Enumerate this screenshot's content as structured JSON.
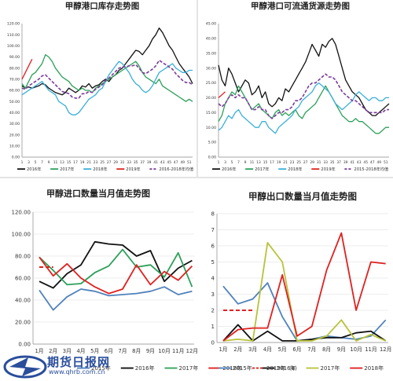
{
  "chart_data": [
    {
      "type": "line",
      "title": "甲醇港口库存走势图",
      "ylim": [
        0,
        120
      ],
      "y_ticks": [
        "0.00",
        "10.00",
        "20.00",
        "30.00",
        "40.00",
        "50.00",
        "60.00",
        "70.00",
        "80.00",
        "90.00",
        "100.00",
        "110.00",
        "120.00"
      ],
      "x_ticks": [
        "1",
        "3",
        "5",
        "7",
        "9",
        "11",
        "13",
        "15",
        "17",
        "19",
        "21",
        "23",
        "25",
        "27",
        "29",
        "31",
        "33",
        "35",
        "37",
        "39",
        "41",
        "43",
        "45",
        "47",
        "49",
        "51"
      ],
      "x": [
        1,
        2,
        3,
        4,
        5,
        6,
        7,
        8,
        9,
        10,
        11,
        12,
        13,
        14,
        15,
        16,
        17,
        18,
        19,
        20,
        21,
        22,
        23,
        24,
        25,
        26,
        27,
        28,
        29,
        30,
        31,
        32,
        33,
        34,
        35,
        36,
        37,
        38,
        39,
        40,
        41,
        42,
        43,
        44,
        45,
        46,
        47,
        48,
        49,
        50,
        51,
        52
      ],
      "series": [
        {
          "name": "2016年",
          "color": "#111111",
          "dash": false,
          "values": [
            64,
            62,
            63,
            62,
            63,
            64,
            66,
            65,
            62,
            60,
            58,
            57,
            56,
            58,
            62,
            60,
            58,
            60,
            64,
            63,
            66,
            62,
            64,
            65,
            68,
            70,
            68,
            72,
            74,
            78,
            80,
            84,
            88,
            92,
            96,
            95,
            92,
            96,
            100,
            106,
            110,
            116,
            112,
            106,
            100,
            96,
            90,
            84,
            80,
            76,
            72,
            66
          ]
        },
        {
          "name": "2017年",
          "color": "#2ca05a",
          "dash": false,
          "values": [
            66,
            62,
            68,
            74,
            76,
            80,
            84,
            92,
            90,
            86,
            80,
            76,
            72,
            70,
            68,
            64,
            62,
            60,
            62,
            60,
            60,
            58,
            62,
            64,
            66,
            68,
            70,
            72,
            74,
            76,
            78,
            80,
            82,
            84,
            86,
            82,
            76,
            72,
            70,
            68,
            66,
            70,
            64,
            62,
            60,
            58,
            56,
            54,
            52,
            50,
            52,
            50
          ]
        },
        {
          "name": "2018年",
          "color": "#3aafd8",
          "dash": false,
          "values": [
            56,
            58,
            60,
            62,
            64,
            66,
            68,
            64,
            60,
            58,
            56,
            50,
            48,
            46,
            40,
            38,
            38,
            40,
            44,
            48,
            52,
            54,
            56,
            60,
            62,
            68,
            74,
            78,
            82,
            86,
            84,
            80,
            76,
            70,
            66,
            64,
            60,
            58,
            60,
            64,
            70,
            76,
            78,
            80,
            82,
            84,
            80,
            78,
            76,
            76,
            78,
            78
          ]
        },
        {
          "name": "2019年",
          "color": "#e02020",
          "dash": false,
          "values": [
            70,
            76,
            82,
            88,
            null,
            null,
            null,
            null,
            null,
            null,
            null,
            null,
            null,
            null,
            null,
            null,
            null,
            null,
            null,
            null,
            null,
            null,
            null,
            null,
            null,
            null,
            null,
            null,
            null,
            null,
            null,
            null,
            null,
            null,
            null,
            null,
            null,
            null,
            null,
            null,
            null,
            null,
            null,
            null,
            null,
            null,
            null,
            null,
            null,
            null,
            null,
            null
          ]
        },
        {
          "name": "2016-2018年均值",
          "color": "#7a3c9a",
          "dash": true,
          "values": [
            62,
            61,
            64,
            66,
            68,
            70,
            73,
            74,
            71,
            68,
            65,
            62,
            59,
            58,
            57,
            54,
            53,
            53,
            57,
            57,
            59,
            58,
            61,
            63,
            65,
            69,
            71,
            74,
            77,
            80,
            81,
            81,
            82,
            82,
            83,
            80,
            76,
            75,
            77,
            79,
            82,
            87,
            85,
            83,
            81,
            79,
            75,
            72,
            69,
            67,
            67,
            65
          ]
        }
      ]
    },
    {
      "type": "line",
      "title": "甲醇港口可流通货源走势图",
      "ylim": [
        0,
        45
      ],
      "y_ticks": [
        "0.00",
        "5.00",
        "10.00",
        "15.00",
        "20.00",
        "25.00",
        "30.00",
        "35.00",
        "40.00",
        "45.00"
      ],
      "x_ticks": [
        "1",
        "3",
        "5",
        "7",
        "9",
        "11",
        "13",
        "15",
        "17",
        "19",
        "21",
        "23",
        "25",
        "27",
        "29",
        "31",
        "33",
        "35",
        "37",
        "39",
        "41",
        "43",
        "45",
        "47",
        "49",
        "51"
      ],
      "x": [
        1,
        2,
        3,
        4,
        5,
        6,
        7,
        8,
        9,
        10,
        11,
        12,
        13,
        14,
        15,
        16,
        17,
        18,
        19,
        20,
        21,
        22,
        23,
        24,
        25,
        26,
        27,
        28,
        29,
        30,
        31,
        32,
        33,
        34,
        35,
        36,
        37,
        38,
        39,
        40,
        41,
        42,
        43,
        44,
        45,
        46,
        47,
        48,
        49,
        50,
        51,
        52
      ],
      "series": [
        {
          "name": "2016年",
          "color": "#111111",
          "dash": false,
          "values": [
            31,
            26,
            24,
            30,
            28,
            25,
            22,
            24,
            26,
            25,
            21,
            22,
            24,
            20,
            22,
            18,
            17,
            18,
            20,
            19,
            23,
            22,
            24,
            26,
            28,
            30,
            32,
            35,
            38,
            36,
            34,
            38,
            37,
            39,
            40,
            38,
            34,
            30,
            26,
            24,
            22,
            21,
            20,
            18,
            16,
            15,
            14,
            14,
            15,
            16,
            17,
            18
          ]
        },
        {
          "name": "2017年",
          "color": "#2ca05a",
          "dash": false,
          "values": [
            12,
            14,
            18,
            20,
            22,
            21,
            24,
            22,
            20,
            18,
            16,
            17,
            18,
            16,
            15,
            14,
            13,
            15,
            16,
            14,
            15,
            14,
            15,
            16,
            14,
            13,
            15,
            16,
            17,
            18,
            20,
            22,
            24,
            22,
            20,
            18,
            16,
            14,
            13,
            12,
            12,
            13,
            12,
            12,
            11,
            10,
            9,
            8,
            8,
            9,
            10,
            10
          ]
        },
        {
          "name": "2018年",
          "color": "#3aafd8",
          "dash": false,
          "values": [
            9,
            10,
            12,
            14,
            13,
            15,
            16,
            14,
            13,
            12,
            11,
            10,
            10,
            12,
            12,
            10,
            9,
            8,
            10,
            11,
            12,
            13,
            14,
            16,
            17,
            19,
            20,
            21,
            22,
            24,
            25,
            24,
            23,
            22,
            20,
            18,
            17,
            16,
            17,
            18,
            19,
            21,
            22,
            21,
            20,
            19,
            20,
            20,
            19,
            19,
            20,
            20
          ]
        },
        {
          "name": "2019年",
          "color": "#e02020",
          "dash": false,
          "values": [
            20,
            21,
            22,
            null,
            null,
            null,
            null,
            null,
            null,
            null,
            null,
            null,
            null,
            null,
            null,
            null,
            null,
            null,
            null,
            null,
            null,
            null,
            null,
            null,
            null,
            null,
            null,
            null,
            null,
            null,
            null,
            null,
            null,
            null,
            null,
            null,
            null,
            null,
            null,
            null,
            null,
            null,
            null,
            null,
            null,
            null,
            null,
            null,
            null,
            null,
            null,
            null
          ]
        },
        {
          "name": "2015-2018年均值",
          "color": "#7a3c9a",
          "dash": true,
          "values": [
            18,
            17,
            18,
            20,
            21,
            20,
            21,
            20,
            20,
            18,
            16,
            16,
            17,
            16,
            16,
            14,
            13,
            14,
            15,
            15,
            16,
            16,
            17,
            19,
            19,
            20,
            22,
            24,
            25,
            25,
            26,
            27,
            28,
            27,
            27,
            26,
            24,
            22,
            21,
            20,
            19,
            19,
            18,
            17,
            16,
            15,
            15,
            15,
            15,
            15,
            16,
            16
          ]
        }
      ]
    },
    {
      "type": "line",
      "title": "甲醇进口数量当月值走势图",
      "ylim": [
        0,
        120
      ],
      "y_ticks": [
        "0.00",
        "20.00",
        "40.00",
        "60.00",
        "80.00",
        "100.00",
        "120.00"
      ],
      "categories": [
        "1月",
        "2月",
        "3月",
        "4月",
        "5月",
        "6月",
        "7月",
        "8月",
        "9月",
        "10月",
        "11月",
        "12月"
      ],
      "series": [
        {
          "name": "2015年",
          "color": "#4f81bd",
          "dash": false,
          "values": [
            49,
            31,
            43,
            50,
            48,
            44,
            45,
            46,
            48,
            52,
            45,
            48
          ]
        },
        {
          "name": "2016年",
          "color": "#111111",
          "dash": false,
          "values": [
            57,
            51,
            64,
            72,
            93,
            91,
            90,
            80,
            85,
            57,
            69,
            76
          ]
        },
        {
          "name": "2017年",
          "color": "#2ca05a",
          "dash": false,
          "values": [
            79,
            67,
            54,
            55,
            65,
            71,
            86,
            70,
            72,
            61,
            83,
            52
          ]
        },
        {
          "name": "2018年",
          "color": "#e02020",
          "dash": false,
          "values": [
            79,
            62,
            73,
            60,
            52,
            46,
            50,
            72,
            54,
            66,
            58,
            71
          ]
        },
        {
          "name": "2019年（E）",
          "color": "#e02020",
          "dash": true,
          "values": [
            70,
            70,
            null,
            null,
            null,
            null,
            null,
            null,
            null,
            null,
            null,
            null
          ]
        }
      ]
    },
    {
      "type": "line",
      "title": "甲醇出口数量当月值走势图",
      "ylim": [
        0,
        8
      ],
      "y_ticks": [
        "0",
        "1",
        "2",
        "3",
        "4",
        "5",
        "6",
        "7",
        "8"
      ],
      "categories": [
        "1月",
        "2月",
        "3月",
        "4月",
        "5月",
        "6月",
        "7月",
        "8月",
        "9月",
        "10月",
        "11月",
        "12月"
      ],
      "series": [
        {
          "name": "2015年",
          "color": "#4f81bd",
          "dash": false,
          "values": [
            3.5,
            2.4,
            2.7,
            3.7,
            1.6,
            0.1,
            0.2,
            0.4,
            0.3,
            0.2,
            0.4,
            1.4
          ]
        },
        {
          "name": "2016年",
          "color": "#111111",
          "dash": false,
          "values": [
            0.1,
            1.1,
            0.1,
            0.7,
            0.1,
            0.1,
            0.2,
            0.3,
            0.3,
            0.6,
            0.7,
            0.1
          ]
        },
        {
          "name": "2017年",
          "color": "#b8c23a",
          "dash": false,
          "values": [
            0.1,
            0.2,
            0.1,
            6.2,
            5.0,
            0.1,
            0.1,
            0.4,
            1.4,
            0.1,
            0.5,
            0.1
          ]
        },
        {
          "name": "2018年",
          "color": "#e02020",
          "dash": false,
          "values": [
            0.1,
            0.8,
            0.9,
            0.9,
            4.2,
            0.4,
            1.0,
            4.5,
            6.8,
            2.0,
            5.0,
            4.9
          ]
        },
        {
          "name": "2019年（E）",
          "color": "#e02020",
          "dash": true,
          "values": [
            2.0,
            2.0,
            2.0,
            null,
            null,
            null,
            null,
            null,
            null,
            null,
            null,
            null
          ]
        }
      ]
    }
  ],
  "watermark": {
    "brand": "期货日报网",
    "url": "www.qhrb.com.cn"
  },
  "colors": {
    "accent": "#2a4e9c"
  }
}
